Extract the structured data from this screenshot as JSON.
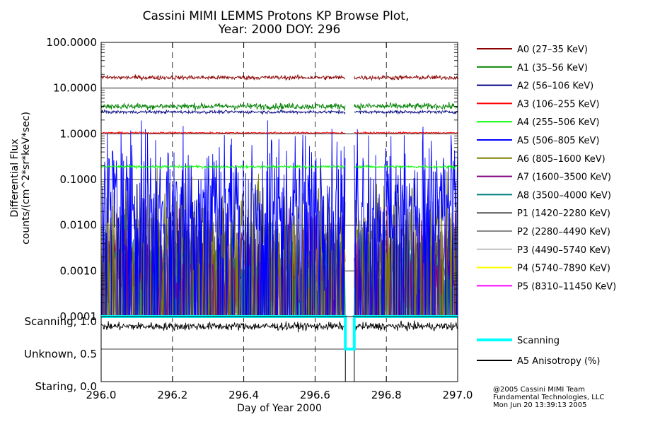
{
  "chart_data": {
    "type": "line",
    "title_lines": [
      "Cassini MIMI LEMMS Protons KP Browse Plot,",
      "Year: 2000 DOY: 296"
    ],
    "xlabel": "Day of Year 2000",
    "xlim": [
      296.0,
      297.0
    ],
    "x_ticks": [
      296.0,
      296.2,
      296.4,
      296.6,
      296.8,
      297.0
    ],
    "x_tick_labels": [
      "296.0",
      "296.2",
      "296.4",
      "296.6",
      "296.8",
      "297.0"
    ],
    "data_gap": [
      296.685,
      296.71
    ],
    "flux_panel": {
      "ylabel_lines": [
        "Differential Flux",
        "counts/(cm^2*sr*keV*sec)"
      ],
      "yscale": "log",
      "ylim": [
        0.0001,
        100.0
      ],
      "y_ticks": [
        100.0,
        10.0,
        1.0,
        0.1,
        0.01,
        0.001,
        0.0001
      ],
      "y_tick_labels": [
        "100.0000",
        "10.0000",
        "1.0000",
        "0.1000",
        "0.0100",
        "0.0010",
        "0.0001"
      ],
      "grid_y_values": [
        10.0,
        1.0,
        0.1,
        0.01,
        0.001
      ],
      "series": [
        {
          "name": "A0 (27–35 KeV)",
          "color": "#8b0000",
          "level": 17,
          "spread": 0.32,
          "style": "continuous"
        },
        {
          "name": "A1 (35–56 KeV)",
          "color": "#008000",
          "level": 4.0,
          "spread": 0.45,
          "style": "continuous"
        },
        {
          "name": "A2 (56–106 KeV)",
          "color": "#000080",
          "level": 3.0,
          "spread": 0.22,
          "style": "continuous"
        },
        {
          "name": "A3 (106–255 KeV)",
          "color": "#ff0000",
          "level": 1.05,
          "spread": 0.12,
          "style": "continuous"
        },
        {
          "name": "A4 (255–506 KeV)",
          "color": "#00ff00",
          "level": 0.19,
          "spread": 0.2,
          "style": "continuous"
        },
        {
          "name": "A5 (506–805 KeV)",
          "color": "#0000ff",
          "level": 0.05,
          "spread": 1.4,
          "style": "spiky"
        },
        {
          "name": "A6 (805–1600 KeV)",
          "color": "#808000",
          "level": 0.006,
          "spread": 1.3,
          "style": "spiky"
        },
        {
          "name": "A7 (1600–3500 KeV)",
          "color": "#800080",
          "level": 0.002,
          "spread": 1.0,
          "style": "spiky"
        },
        {
          "name": "A8 (3500–4000 KeV)",
          "color": "#008080",
          "level": 0.0015,
          "spread": 0.8,
          "style": "spiky"
        },
        {
          "name": "P1 (1420–2280 KeV)",
          "color": "#555555",
          "level": 0.0015,
          "spread": 0.9,
          "style": "spiky"
        },
        {
          "name": "P2 (2280–4490 KeV)",
          "color": "#888888",
          "level": 0.0012,
          "spread": 1.0,
          "style": "spiky"
        },
        {
          "name": "P3 (4490–5740 KeV)",
          "color": "#c0c0c0",
          "level": 0.0008,
          "spread": 0.9,
          "style": "spiky"
        },
        {
          "name": "P4 (5740–7890 KeV)",
          "color": "#ffff00",
          "level": 0.0001,
          "spread": 0.2,
          "style": "spiky"
        },
        {
          "name": "P5 (8310–11450 KeV)",
          "color": "#ff00ff",
          "level": 0.0001,
          "spread": 0.2,
          "style": "spiky"
        }
      ]
    },
    "status_panel": {
      "ylim": [
        0.0,
        1.0
      ],
      "y_ticks": [
        1.0,
        0.5,
        0.0
      ],
      "y_tick_labels": [
        "Scanning, 1.0",
        "Unknown, 0.5",
        "Staring, 0.0"
      ],
      "series": [
        {
          "name": "Scanning",
          "color": "#00ffff",
          "values_x": [
            296.0,
            296.685,
            296.685,
            296.71,
            296.71,
            297.0
          ],
          "values_y": [
            1.0,
            1.0,
            0.5,
            0.5,
            1.0,
            1.0
          ]
        },
        {
          "name": "A5 Anisotropy (%)",
          "color": "#000000",
          "level": 0.85,
          "spread": 0.06
        }
      ]
    }
  },
  "credits": [
    "@2005 Cassini MIMI Team",
    "Fundamental Technologies, LLC",
    "Mon Jun 20 13:39:13 2005"
  ]
}
